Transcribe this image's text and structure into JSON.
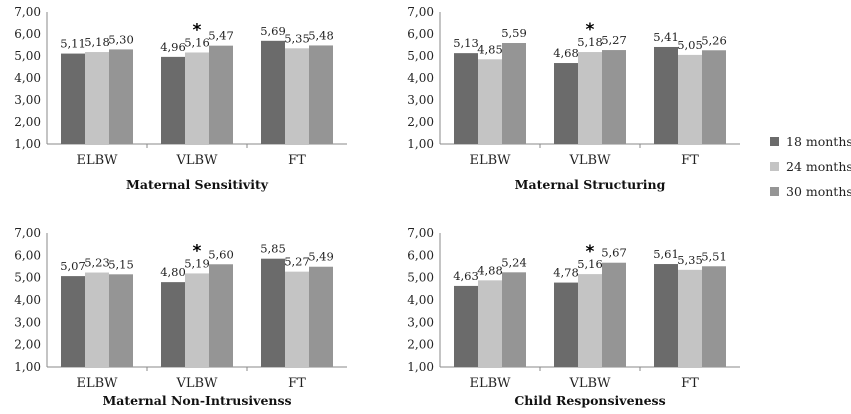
{
  "colors": {
    "18 months": "#6b6b6b",
    "24 months": "#c4c4c4",
    "30 months": "#959595"
  },
  "legend": [
    "18 months",
    "24 months",
    "30 months"
  ],
  "significance_marker": "*",
  "chart_data": [
    {
      "type": "bar",
      "title": "Maternal Sensitivity",
      "categories": [
        "ELBW",
        "VLBW",
        "FT"
      ],
      "ylim": [
        1,
        7
      ],
      "yticks": [
        "1,00",
        "2,00",
        "3,00",
        "4,00",
        "5,00",
        "6,00",
        "7,00"
      ],
      "series": [
        {
          "name": "18 months",
          "values": [
            5.11,
            4.96,
            5.69
          ],
          "labels": [
            "5,11",
            "4,96",
            "5,69"
          ]
        },
        {
          "name": "24 months",
          "values": [
            5.18,
            5.16,
            5.35
          ],
          "labels": [
            "5,18",
            "5,16",
            "5,35"
          ]
        },
        {
          "name": "30 months",
          "values": [
            5.3,
            5.47,
            5.48
          ],
          "labels": [
            "5,30",
            "5,47",
            "5,48"
          ]
        }
      ],
      "significant_category": "VLBW"
    },
    {
      "type": "bar",
      "title": "Maternal Structuring",
      "categories": [
        "ELBW",
        "VLBW",
        "FT"
      ],
      "ylim": [
        1,
        7
      ],
      "yticks": [
        "1,00",
        "2,00",
        "3,00",
        "4,00",
        "5,00",
        "6,00",
        "7,00"
      ],
      "series": [
        {
          "name": "18 months",
          "values": [
            5.13,
            4.68,
            5.41
          ],
          "labels": [
            "5,13",
            "4,68",
            "5,41"
          ]
        },
        {
          "name": "24 months",
          "values": [
            4.85,
            5.18,
            5.05
          ],
          "labels": [
            "4,85",
            "5,18",
            "5,05"
          ]
        },
        {
          "name": "30 months",
          "values": [
            5.59,
            5.27,
            5.26
          ],
          "labels": [
            "5,59",
            "5,27",
            "5,26"
          ]
        }
      ],
      "significant_category": "VLBW"
    },
    {
      "type": "bar",
      "title": "Maternal Non-Intrusivenss",
      "categories": [
        "ELBW",
        "VLBW",
        "FT"
      ],
      "ylim": [
        1,
        7
      ],
      "yticks": [
        "1,00",
        "2,00",
        "3,00",
        "4,00",
        "5,00",
        "6,00",
        "7,00"
      ],
      "series": [
        {
          "name": "18 months",
          "values": [
            5.07,
            4.8,
            5.85
          ],
          "labels": [
            "5,07",
            "4,80",
            "5,85"
          ]
        },
        {
          "name": "24 months",
          "values": [
            5.23,
            5.19,
            5.27
          ],
          "labels": [
            "5,23",
            "5,19",
            "5,27"
          ]
        },
        {
          "name": "30 months",
          "values": [
            5.15,
            5.6,
            5.49
          ],
          "labels": [
            "5,15",
            "5,60",
            "5,49"
          ]
        }
      ],
      "significant_category": "VLBW"
    },
    {
      "type": "bar",
      "title": "Child Responsiveness",
      "categories": [
        "ELBW",
        "VLBW",
        "FT"
      ],
      "ylim": [
        1,
        7
      ],
      "yticks": [
        "1,00",
        "2,00",
        "3,00",
        "4,00",
        "5,00",
        "6,00",
        "7,00"
      ],
      "series": [
        {
          "name": "18 months",
          "values": [
            4.63,
            4.78,
            5.61
          ],
          "labels": [
            "4,63",
            "4,78",
            "5,61"
          ]
        },
        {
          "name": "24 months",
          "values": [
            4.88,
            5.16,
            5.35
          ],
          "labels": [
            "4,88",
            "5,16",
            "5,35"
          ]
        },
        {
          "name": "30 months",
          "values": [
            5.24,
            5.67,
            5.51
          ],
          "labels": [
            "5,24",
            "5,67",
            "5,51"
          ]
        }
      ],
      "significant_category": "VLBW"
    }
  ]
}
